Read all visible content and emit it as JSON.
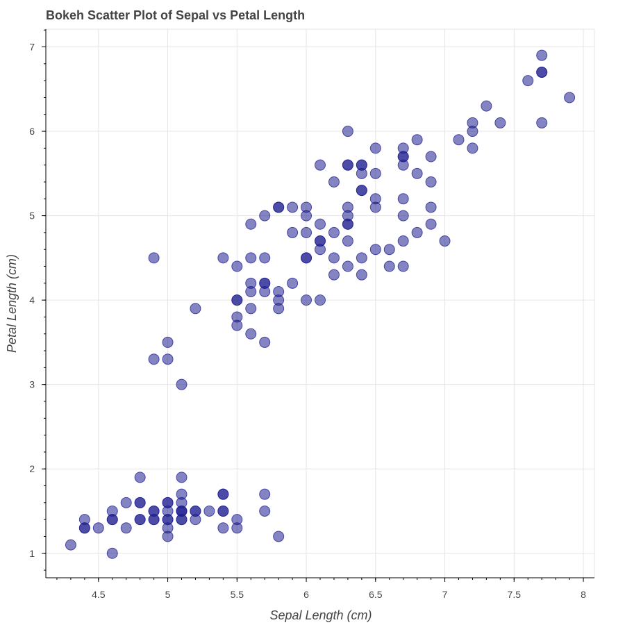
{
  "chart_data": {
    "type": "scatter",
    "title": "Bokeh Scatter Plot of Sepal vs Petal Length",
    "xlabel": "Sepal Length (cm)",
    "ylabel": "Petal Length (cm)",
    "xlim": [
      4.12,
      8.08
    ],
    "ylim": [
      0.71,
      7.21
    ],
    "x_ticks": [
      "4.5",
      "5",
      "5.5",
      "6",
      "6.5",
      "7",
      "7.5",
      "8"
    ],
    "y_ticks": [
      "1",
      "2",
      "3",
      "4",
      "5",
      "6",
      "7"
    ],
    "grid": true,
    "marker_color": "#1f1f8f",
    "marker_alpha": 0.55,
    "points": [
      [
        4.3,
        1.1
      ],
      [
        4.4,
        1.3
      ],
      [
        4.4,
        1.4
      ],
      [
        4.4,
        1.3
      ],
      [
        4.5,
        1.3
      ],
      [
        4.6,
        1.0
      ],
      [
        4.6,
        1.4
      ],
      [
        4.6,
        1.5
      ],
      [
        4.6,
        1.4
      ],
      [
        4.7,
        1.3
      ],
      [
        4.7,
        1.6
      ],
      [
        4.8,
        1.4
      ],
      [
        4.8,
        1.6
      ],
      [
        4.8,
        1.9
      ],
      [
        4.8,
        1.4
      ],
      [
        4.8,
        1.6
      ],
      [
        4.9,
        1.4
      ],
      [
        4.9,
        1.5
      ],
      [
        4.9,
        1.4
      ],
      [
        4.9,
        1.5
      ],
      [
        4.9,
        3.3
      ],
      [
        4.9,
        4.5
      ],
      [
        5.0,
        1.2
      ],
      [
        5.0,
        1.3
      ],
      [
        5.0,
        1.4
      ],
      [
        5.0,
        1.5
      ],
      [
        5.0,
        1.6
      ],
      [
        5.0,
        1.4
      ],
      [
        5.0,
        1.6
      ],
      [
        5.0,
        3.3
      ],
      [
        5.0,
        3.5
      ],
      [
        5.1,
        1.4
      ],
      [
        5.1,
        1.5
      ],
      [
        5.1,
        1.4
      ],
      [
        5.1,
        1.5
      ],
      [
        5.1,
        1.6
      ],
      [
        5.1,
        1.7
      ],
      [
        5.1,
        1.9
      ],
      [
        5.1,
        1.5
      ],
      [
        5.1,
        3.0
      ],
      [
        5.2,
        1.4
      ],
      [
        5.2,
        1.5
      ],
      [
        5.2,
        1.5
      ],
      [
        5.2,
        3.9
      ],
      [
        5.3,
        1.5
      ],
      [
        5.4,
        1.3
      ],
      [
        5.4,
        1.5
      ],
      [
        5.4,
        1.7
      ],
      [
        5.4,
        1.7
      ],
      [
        5.4,
        1.5
      ],
      [
        5.4,
        4.5
      ],
      [
        5.5,
        1.3
      ],
      [
        5.5,
        1.4
      ],
      [
        5.5,
        3.7
      ],
      [
        5.5,
        3.8
      ],
      [
        5.5,
        4.0
      ],
      [
        5.5,
        4.0
      ],
      [
        5.5,
        4.4
      ],
      [
        5.6,
        3.6
      ],
      [
        5.6,
        3.9
      ],
      [
        5.6,
        4.1
      ],
      [
        5.6,
        4.2
      ],
      [
        5.6,
        4.5
      ],
      [
        5.6,
        4.9
      ],
      [
        5.7,
        1.5
      ],
      [
        5.7,
        1.7
      ],
      [
        5.7,
        3.5
      ],
      [
        5.7,
        4.1
      ],
      [
        5.7,
        4.2
      ],
      [
        5.7,
        4.2
      ],
      [
        5.7,
        4.5
      ],
      [
        5.7,
        5.0
      ],
      [
        5.8,
        1.2
      ],
      [
        5.8,
        3.9
      ],
      [
        5.8,
        4.0
      ],
      [
        5.8,
        4.1
      ],
      [
        5.8,
        5.1
      ],
      [
        5.8,
        5.1
      ],
      [
        5.9,
        4.2
      ],
      [
        5.9,
        4.8
      ],
      [
        5.9,
        5.1
      ],
      [
        6.0,
        4.0
      ],
      [
        6.0,
        4.5
      ],
      [
        6.0,
        4.5
      ],
      [
        6.0,
        4.8
      ],
      [
        6.0,
        5.0
      ],
      [
        6.0,
        5.1
      ],
      [
        6.1,
        4.0
      ],
      [
        6.1,
        4.6
      ],
      [
        6.1,
        4.7
      ],
      [
        6.1,
        4.7
      ],
      [
        6.1,
        4.9
      ],
      [
        6.1,
        5.6
      ],
      [
        6.2,
        4.3
      ],
      [
        6.2,
        4.5
      ],
      [
        6.2,
        4.8
      ],
      [
        6.2,
        5.4
      ],
      [
        6.3,
        4.4
      ],
      [
        6.3,
        4.7
      ],
      [
        6.3,
        4.9
      ],
      [
        6.3,
        4.9
      ],
      [
        6.3,
        5.0
      ],
      [
        6.3,
        5.1
      ],
      [
        6.3,
        5.6
      ],
      [
        6.3,
        5.6
      ],
      [
        6.3,
        6.0
      ],
      [
        6.4,
        4.3
      ],
      [
        6.4,
        4.5
      ],
      [
        6.4,
        5.3
      ],
      [
        6.4,
        5.3
      ],
      [
        6.4,
        5.5
      ],
      [
        6.4,
        5.6
      ],
      [
        6.4,
        5.6
      ],
      [
        6.5,
        4.6
      ],
      [
        6.5,
        5.1
      ],
      [
        6.5,
        5.2
      ],
      [
        6.5,
        5.5
      ],
      [
        6.5,
        5.8
      ],
      [
        6.6,
        4.4
      ],
      [
        6.6,
        4.6
      ],
      [
        6.7,
        4.4
      ],
      [
        6.7,
        4.7
      ],
      [
        6.7,
        5.0
      ],
      [
        6.7,
        5.2
      ],
      [
        6.7,
        5.6
      ],
      [
        6.7,
        5.7
      ],
      [
        6.7,
        5.7
      ],
      [
        6.7,
        5.8
      ],
      [
        6.8,
        4.8
      ],
      [
        6.8,
        5.5
      ],
      [
        6.8,
        5.9
      ],
      [
        6.9,
        4.9
      ],
      [
        6.9,
        5.1
      ],
      [
        6.9,
        5.4
      ],
      [
        6.9,
        5.7
      ],
      [
        7.0,
        4.7
      ],
      [
        7.1,
        5.9
      ],
      [
        7.2,
        5.8
      ],
      [
        7.2,
        6.0
      ],
      [
        7.2,
        6.1
      ],
      [
        7.3,
        6.3
      ],
      [
        7.4,
        6.1
      ],
      [
        7.6,
        6.6
      ],
      [
        7.7,
        6.1
      ],
      [
        7.7,
        6.7
      ],
      [
        7.7,
        6.7
      ],
      [
        7.7,
        6.9
      ],
      [
        7.9,
        6.4
      ]
    ]
  }
}
